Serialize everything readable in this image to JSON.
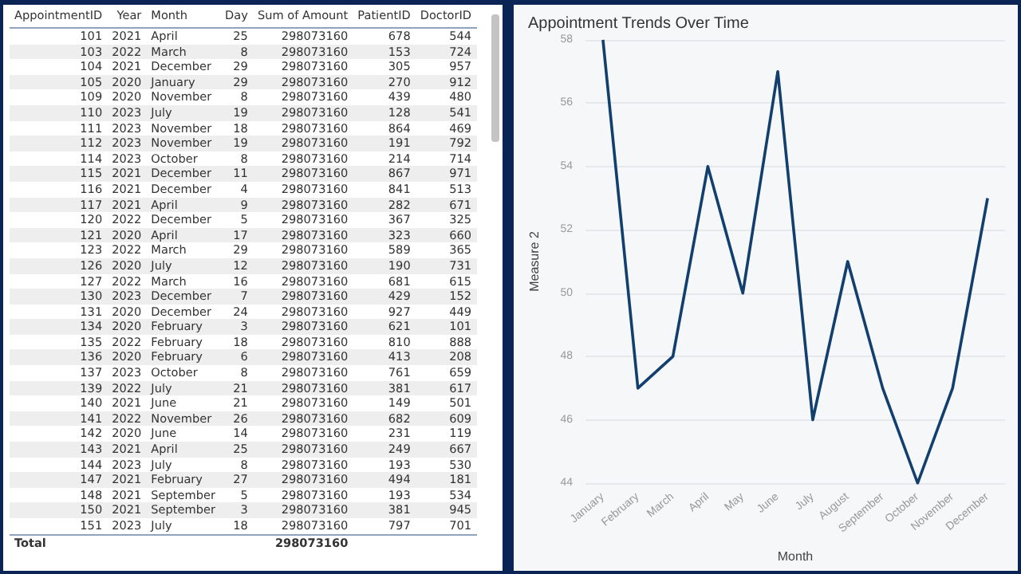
{
  "chart_data": [
    {
      "type": "other",
      "categories": [
        "AppointmentID",
        "Year",
        "Month",
        "Day",
        "Sum of Amount",
        "PatientID",
        "DoctorID"
      ],
      "cell_labels": [
        [
          "101",
          "2021",
          "April",
          "25",
          "298073160",
          "678",
          "544"
        ],
        [
          "103",
          "2022",
          "March",
          "8",
          "298073160",
          "153",
          "724"
        ],
        [
          "104",
          "2021",
          "December",
          "29",
          "298073160",
          "305",
          "957"
        ],
        [
          "105",
          "2020",
          "January",
          "29",
          "298073160",
          "270",
          "912"
        ],
        [
          "109",
          "2020",
          "November",
          "8",
          "298073160",
          "439",
          "480"
        ],
        [
          "110",
          "2023",
          "July",
          "19",
          "298073160",
          "128",
          "541"
        ],
        [
          "111",
          "2023",
          "November",
          "18",
          "298073160",
          "864",
          "469"
        ],
        [
          "112",
          "2023",
          "November",
          "19",
          "298073160",
          "191",
          "792"
        ],
        [
          "114",
          "2023",
          "October",
          "8",
          "298073160",
          "214",
          "714"
        ],
        [
          "115",
          "2021",
          "December",
          "11",
          "298073160",
          "867",
          "971"
        ],
        [
          "116",
          "2021",
          "December",
          "4",
          "298073160",
          "841",
          "513"
        ],
        [
          "117",
          "2021",
          "April",
          "9",
          "298073160",
          "282",
          "671"
        ],
        [
          "120",
          "2022",
          "December",
          "5",
          "298073160",
          "367",
          "325"
        ],
        [
          "121",
          "2020",
          "April",
          "17",
          "298073160",
          "323",
          "660"
        ],
        [
          "123",
          "2022",
          "March",
          "29",
          "298073160",
          "589",
          "365"
        ],
        [
          "126",
          "2020",
          "July",
          "12",
          "298073160",
          "190",
          "731"
        ],
        [
          "127",
          "2022",
          "March",
          "16",
          "298073160",
          "681",
          "615"
        ],
        [
          "130",
          "2023",
          "December",
          "7",
          "298073160",
          "429",
          "152"
        ],
        [
          "131",
          "2020",
          "December",
          "24",
          "298073160",
          "927",
          "449"
        ],
        [
          "134",
          "2020",
          "February",
          "3",
          "298073160",
          "621",
          "101"
        ],
        [
          "135",
          "2022",
          "February",
          "18",
          "298073160",
          "810",
          "888"
        ],
        [
          "136",
          "2020",
          "February",
          "6",
          "298073160",
          "413",
          "208"
        ],
        [
          "137",
          "2023",
          "October",
          "8",
          "298073160",
          "761",
          "659"
        ],
        [
          "139",
          "2022",
          "July",
          "21",
          "298073160",
          "381",
          "617"
        ],
        [
          "140",
          "2021",
          "June",
          "21",
          "298073160",
          "149",
          "501"
        ],
        [
          "141",
          "2022",
          "November",
          "26",
          "298073160",
          "682",
          "609"
        ],
        [
          "142",
          "2020",
          "June",
          "14",
          "298073160",
          "231",
          "119"
        ],
        [
          "143",
          "2021",
          "April",
          "25",
          "298073160",
          "249",
          "667"
        ],
        [
          "144",
          "2023",
          "July",
          "8",
          "298073160",
          "193",
          "530"
        ],
        [
          "147",
          "2021",
          "February",
          "27",
          "298073160",
          "494",
          "181"
        ],
        [
          "148",
          "2021",
          "September",
          "5",
          "298073160",
          "193",
          "534"
        ],
        [
          "150",
          "2021",
          "September",
          "3",
          "298073160",
          "381",
          "945"
        ],
        [
          "151",
          "2023",
          "July",
          "18",
          "298073160",
          "797",
          "701"
        ],
        [
          "Total",
          null,
          null,
          null,
          "298073160",
          null,
          null
        ]
      ]
    },
    {
      "type": "line",
      "title": "Appointment Trends Over Time",
      "xlabel": "Month",
      "ylabel": "Measure 2",
      "categories": [
        "January",
        "February",
        "March",
        "April",
        "May",
        "June",
        "July",
        "August",
        "September",
        "October",
        "November",
        "December"
      ],
      "values": [
        58,
        47,
        48,
        54,
        50,
        57,
        46,
        51,
        47,
        44,
        47,
        53
      ],
      "color": "#123f6e",
      "ylim": [
        44,
        58
      ],
      "yticks": [
        44,
        46,
        48,
        50,
        52,
        54,
        56,
        58
      ],
      "grid": "y",
      "legend": false,
      "marker": "none",
      "line_style": "solid"
    }
  ]
}
